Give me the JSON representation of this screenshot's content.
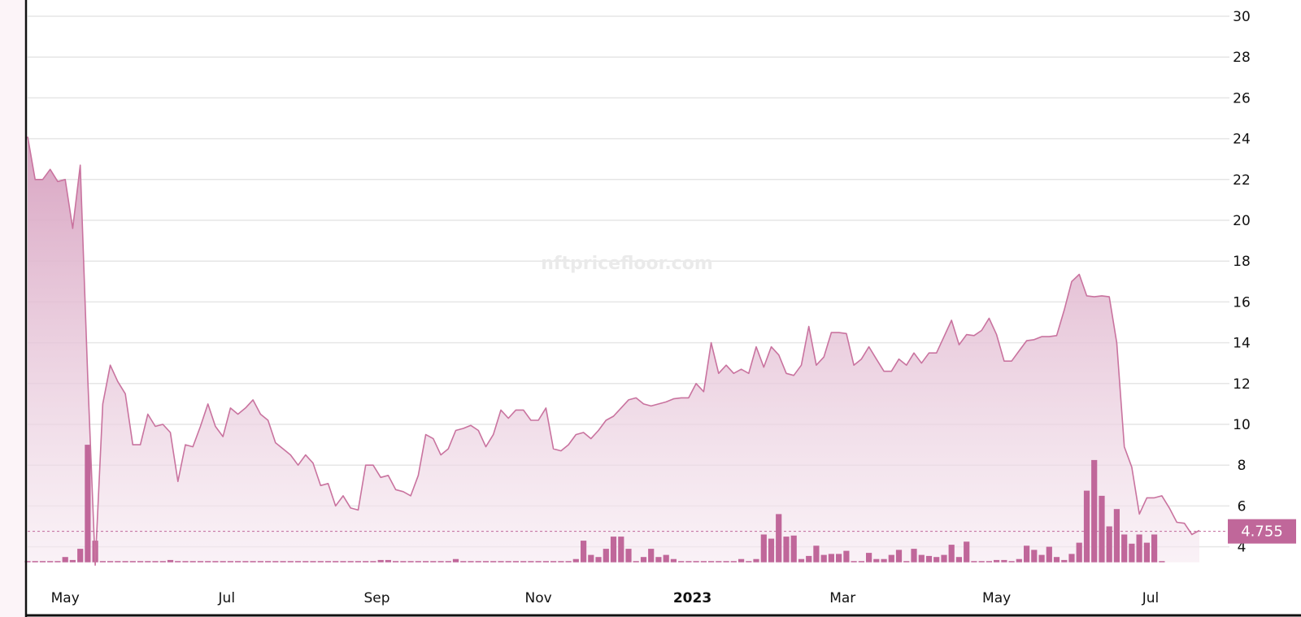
{
  "watermark": "nftpricefloor.com",
  "current_price_label": "4.755",
  "colors": {
    "line": "#c9739f",
    "bar": "#c0679a",
    "area_top": "#d8a3c1",
    "grid": "#e6e6e6",
    "left_panel": "#fcf4f8"
  },
  "chart_data": {
    "type": "area",
    "ylim": [
      3,
      30.5
    ],
    "y_ticks": [
      4,
      6,
      8,
      10,
      12,
      14,
      16,
      18,
      20,
      22,
      24,
      26,
      28,
      30
    ],
    "x_range": [
      0,
      160
    ],
    "x_ticks": [
      {
        "x": 5,
        "label": "May",
        "bold": false
      },
      {
        "x": 26.5,
        "label": "Jul",
        "bold": false
      },
      {
        "x": 46.5,
        "label": "Sep",
        "bold": false
      },
      {
        "x": 68,
        "label": "Nov",
        "bold": false
      },
      {
        "x": 88.5,
        "label": "2023",
        "bold": true
      },
      {
        "x": 108.5,
        "label": "Mar",
        "bold": false
      },
      {
        "x": 129,
        "label": "May",
        "bold": false
      },
      {
        "x": 149.5,
        "label": "Jul",
        "bold": false
      }
    ],
    "current_price": 4.755,
    "series": [
      {
        "kind": "floor-price-line",
        "values": [
          24.1,
          22,
          22,
          22.5,
          21.9,
          22,
          19.6,
          22.7,
          12.3,
          3.1,
          11,
          12.9,
          12.1,
          11.5,
          9,
          9,
          10.5,
          9.9,
          10,
          9.6,
          7.2,
          9,
          8.9,
          9.9,
          11,
          9.9,
          9.4,
          10.8,
          10.5,
          10.8,
          11.2,
          10.5,
          10.2,
          9.1,
          8.8,
          8.5,
          8,
          8.5,
          8.1,
          7,
          7.1,
          6,
          6.5,
          5.9,
          5.8,
          8,
          8,
          7.4,
          7.5,
          6.8,
          6.7,
          6.5,
          7.5,
          9.5,
          9.3,
          8.5,
          8.8,
          9.7,
          9.8,
          9.95,
          9.7,
          8.9,
          9.5,
          10.7,
          10.3,
          10.7,
          10.7,
          10.2,
          10.2,
          10.8,
          8.8,
          8.7,
          9,
          9.5,
          9.6,
          9.3,
          9.7,
          10.2,
          10.4,
          10.8,
          11.2,
          11.3,
          11,
          10.9,
          11,
          11.1,
          11.25,
          11.3,
          11.3,
          12,
          11.6,
          14,
          12.5,
          12.9,
          12.5,
          12.7,
          12.5,
          13.8,
          12.8,
          13.8,
          13.4,
          12.5,
          12.4,
          12.9,
          14.8,
          12.9,
          13.3,
          14.5,
          14.5,
          14.45,
          12.9,
          13.2,
          13.8,
          13.2,
          12.6,
          12.6,
          13.2,
          12.9,
          13.5,
          13,
          13.5,
          13.5,
          14.3,
          15.1,
          13.9,
          14.4,
          14.35,
          14.6,
          15.2,
          14.4,
          13.1,
          13.1,
          13.6,
          14.1,
          14.15,
          14.3,
          14.3,
          14.35,
          15.6,
          17,
          17.35,
          16.3,
          16.25,
          16.3,
          16.25,
          14,
          8.9,
          7.9,
          5.6,
          6.4,
          6.4,
          6.5,
          5.9,
          5.2,
          5.15,
          4.6,
          4.8
        ]
      },
      {
        "kind": "volume-bars",
        "values": [
          3.2,
          3.2,
          3.2,
          3.2,
          3.25,
          3.5,
          3.35,
          3.9,
          9,
          4.3,
          3.2,
          3.2,
          3.2,
          3.3,
          3.2,
          3.15,
          3.15,
          3.15,
          3.1,
          3.35,
          3.2,
          3.2,
          3.3,
          3.15,
          3.15,
          3.15,
          3.15,
          3.15,
          3.1,
          3.1,
          3.1,
          3.1,
          3.15,
          3.1,
          3.1,
          3.1,
          3.1,
          3.15,
          3.1,
          3.1,
          3.15,
          3.3,
          3.1,
          3.1,
          3.1,
          3.1,
          3.1,
          3.35,
          3.35,
          3.2,
          3.2,
          3.15,
          3.15,
          3.15,
          3.15,
          3.15,
          3.2,
          3.4,
          3.15,
          3.3,
          3.25,
          3.25,
          3.2,
          3.2,
          3.15,
          3.25,
          3.25,
          3.25,
          3.2,
          3.2,
          3.25,
          3.25,
          3.25,
          3.4,
          4.3,
          3.6,
          3.5,
          3.9,
          4.5,
          4.5,
          3.9,
          3.15,
          3.5,
          3.9,
          3.5,
          3.6,
          3.4,
          3.3,
          3.2,
          3.2,
          3.2,
          3.2,
          3.2,
          3.25,
          3.3,
          3.4,
          3.2,
          3.4,
          4.6,
          4.4,
          5.6,
          4.5,
          4.55,
          3.4,
          3.55,
          4.05,
          3.6,
          3.65,
          3.65,
          3.8,
          3.25,
          3.25,
          3.7,
          3.4,
          3.4,
          3.6,
          3.85,
          3.3,
          3.9,
          3.6,
          3.55,
          3.5,
          3.6,
          4.1,
          3.5,
          4.25,
          3.3,
          3.2,
          3.2,
          3.35,
          3.35,
          3.2,
          3.4,
          4.05,
          3.85,
          3.6,
          4,
          3.5,
          3.35,
          3.65,
          4.2,
          6.75,
          8.25,
          6.5,
          5,
          5.85,
          4.6,
          4.15,
          4.6,
          4.2,
          4.6,
          3.1
        ]
      }
    ]
  }
}
